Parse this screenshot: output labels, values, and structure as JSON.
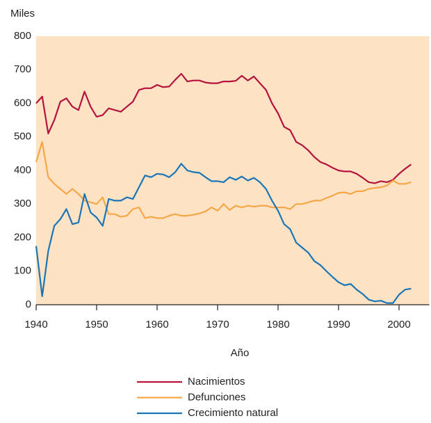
{
  "chart_data": {
    "type": "line",
    "y_label": "Miles",
    "x_label": "Año",
    "x": [
      1940,
      1941,
      1942,
      1943,
      1944,
      1945,
      1946,
      1947,
      1948,
      1949,
      1950,
      1951,
      1952,
      1953,
      1954,
      1955,
      1956,
      1957,
      1958,
      1959,
      1960,
      1961,
      1962,
      1963,
      1964,
      1965,
      1966,
      1967,
      1968,
      1969,
      1970,
      1971,
      1972,
      1973,
      1974,
      1975,
      1976,
      1977,
      1978,
      1979,
      1980,
      1981,
      1982,
      1983,
      1984,
      1985,
      1986,
      1987,
      1988,
      1989,
      1990,
      1991,
      1992,
      1993,
      1994,
      1995,
      1996,
      1997,
      1998,
      1999,
      2000,
      2001,
      2002
    ],
    "series": [
      {
        "name": "Nacimientos",
        "color": "#b5123e",
        "values": [
          600,
          620,
          510,
          550,
          605,
          615,
          590,
          580,
          635,
          590,
          560,
          565,
          585,
          580,
          575,
          590,
          605,
          640,
          645,
          645,
          655,
          648,
          650,
          670,
          688,
          665,
          668,
          668,
          662,
          660,
          660,
          665,
          665,
          667,
          682,
          668,
          680,
          660,
          640,
          600,
          570,
          530,
          520,
          485,
          475,
          460,
          440,
          425,
          418,
          408,
          400,
          397,
          397,
          390,
          378,
          365,
          362,
          368,
          365,
          372,
          390,
          405,
          418
        ]
      },
      {
        "name": "Defunciones",
        "color": "#f5a748",
        "values": [
          425,
          485,
          380,
          360,
          345,
          330,
          345,
          330,
          310,
          305,
          300,
          320,
          270,
          270,
          262,
          265,
          285,
          290,
          258,
          262,
          258,
          258,
          265,
          270,
          265,
          265,
          268,
          272,
          278,
          290,
          280,
          300,
          282,
          295,
          290,
          295,
          292,
          295,
          295,
          290,
          290,
          290,
          285,
          300,
          300,
          305,
          310,
          310,
          318,
          325,
          333,
          335,
          330,
          338,
          338,
          345,
          348,
          350,
          355,
          370,
          360,
          360,
          365
        ]
      },
      {
        "name": "Crecimiento natural",
        "color": "#1a75b8",
        "values": [
          175,
          25,
          160,
          235,
          255,
          285,
          240,
          245,
          330,
          275,
          260,
          235,
          315,
          310,
          310,
          320,
          315,
          350,
          385,
          380,
          390,
          388,
          380,
          395,
          420,
          400,
          395,
          393,
          380,
          368,
          368,
          365,
          380,
          372,
          382,
          370,
          378,
          365,
          345,
          310,
          280,
          240,
          225,
          185,
          170,
          155,
          130,
          118,
          100,
          83,
          67,
          58,
          62,
          45,
          32,
          15,
          10,
          12,
          5,
          5,
          30,
          45,
          48
        ]
      }
    ],
    "xlim": [
      1940,
      2005
    ],
    "xticks": [
      1940,
      1950,
      1960,
      1970,
      1980,
      1990,
      2000
    ],
    "ylim": [
      0,
      800
    ],
    "yticks": [
      0,
      100,
      200,
      300,
      400,
      500,
      600,
      700,
      800
    ],
    "background": "#fde2c4"
  }
}
